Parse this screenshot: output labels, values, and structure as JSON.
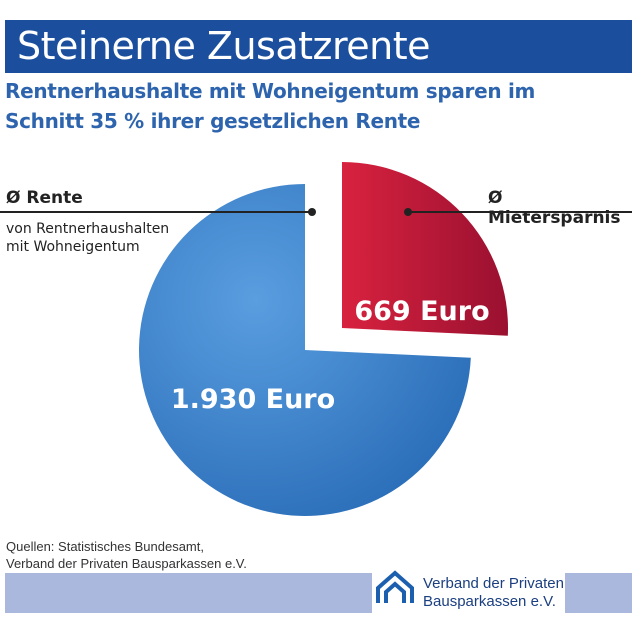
{
  "header": {
    "title": "Steinerne Zusatzrente",
    "subtitle": "Rentnerhaushalte mit Wohneigentum sparen im Schnitt 35 % ihrer gesetzlichen Rente"
  },
  "chart_data": {
    "type": "pie",
    "slices": [
      {
        "label": "Ø Rente",
        "sublabel": "von Rentnerhaushalten mit Wohneigentum",
        "value": 1930,
        "value_label": "1.930 Euro",
        "color": "#3a7fcc"
      },
      {
        "label": "Ø Mietersparnis",
        "value": 669,
        "value_label": "669 Euro",
        "color": "#c0183a",
        "exploded": true
      }
    ]
  },
  "footer": {
    "sources": [
      "Quellen: Statistisches Bundesamt,",
      "Verband der Privaten Bausparkassen e.V."
    ],
    "logo_lines": [
      "Verband der Privaten",
      "Bausparkassen e.V."
    ]
  }
}
